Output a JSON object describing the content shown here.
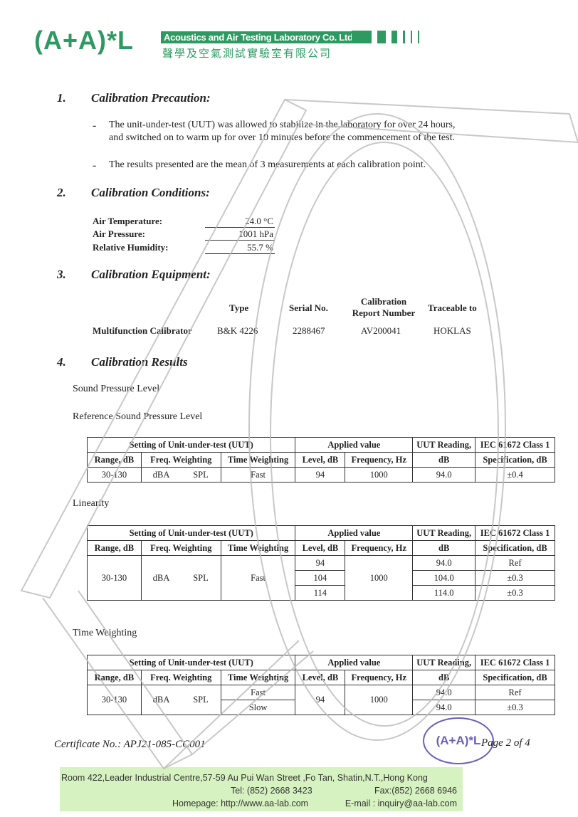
{
  "header": {
    "logo": "(A+A)*L",
    "company_en": "Acoustics and Air Testing Laboratory Co. Ltd.",
    "company_cn": "聲學及空氣測試實驗室有限公司"
  },
  "sections": [
    {
      "num": "1.",
      "title": "Calibration Precaution:"
    },
    {
      "num": "2.",
      "title": "Calibration Conditions:"
    },
    {
      "num": "3.",
      "title": "Calibration Equipment:"
    },
    {
      "num": "4.",
      "title": "Calibration Results"
    }
  ],
  "precautions": [
    "The unit-under-test (UUT) was allowed to stabilize in the laboratory for over 24 hours,",
    "and switched on to warm up for over 10 minutes before the commencement of the test.",
    "The results presented are the mean of 3 measurements at each calibration point."
  ],
  "conditions": [
    {
      "label": "Air Temperature:",
      "value": "24.0 °C"
    },
    {
      "label": "Air Pressure:",
      "value": "1001 hPa"
    },
    {
      "label": "Relative Humidity:",
      "value": "55.7 %"
    }
  ],
  "equipment": {
    "headers": [
      "Type",
      "Serial No.",
      "Calibration Report Number",
      "Traceable to"
    ],
    "row": {
      "name": "Multifunction Calibrator",
      "type": "B&K 4226",
      "serial": "2288467",
      "report": "AV200041",
      "trace": "HOKLAS"
    }
  },
  "results": {
    "subtitle": "Sound Pressure Level",
    "tables": [
      {
        "caption": "Reference Sound Pressure Level",
        "rows": [
          [
            "30-130",
            "dBA",
            "SPL",
            "Fast",
            "94",
            "1000",
            "94.0",
            "±0.4"
          ]
        ]
      },
      {
        "caption": "Linearity",
        "rows": [
          [
            "30-130",
            "dBA",
            "SPL",
            "Fast",
            "94",
            "1000",
            "94.0",
            "Ref"
          ],
          [
            "",
            "",
            "",
            "",
            "104",
            "",
            "104.0",
            "±0.3"
          ],
          [
            "",
            "",
            "",
            "",
            "114",
            "",
            "114.0",
            "±0.3"
          ]
        ]
      },
      {
        "caption": "Time Weighting",
        "rows": [
          [
            "30-130",
            "dBA",
            "SPL",
            "Fast",
            "94",
            "1000",
            "94.0",
            "Ref"
          ],
          [
            "",
            "",
            "",
            "Slow",
            "",
            "",
            "94.0",
            "±0.3"
          ]
        ]
      }
    ],
    "headers": {
      "setting": "Setting of Unit-under-test (UUT)",
      "applied": "Applied value",
      "uut": "UUT Reading,",
      "iec": "IEC 61672 Class 1",
      "range": "Range, dB",
      "freqw": "Freq. Weighting",
      "timew": "Time Weighting",
      "level": "Level, dB",
      "freq": "Frequency, Hz",
      "db": "dB",
      "spec": "Specification, dB"
    }
  },
  "footer": {
    "certificate": "Certificate No.: APJ21-085-CC001",
    "page": "Page 2 of 4",
    "address": "Room 422,Leader Industrial Centre,57-59 Au Pui Wan Street ,Fo Tan, Shatin,N.T.,Hong Kong",
    "tel": "Tel: (852) 2668 3423",
    "fax": "Fax:(852) 2668 6946",
    "homepage": "Homepage: http://www.aa-lab.com",
    "email": "E-mail : inquiry@aa-lab.com",
    "stamp": "(A+A)*L"
  },
  "colors": {
    "brand": "#2e9a62",
    "stamp": "#6b5fb8",
    "footer_bg": "#d6f2c0"
  }
}
